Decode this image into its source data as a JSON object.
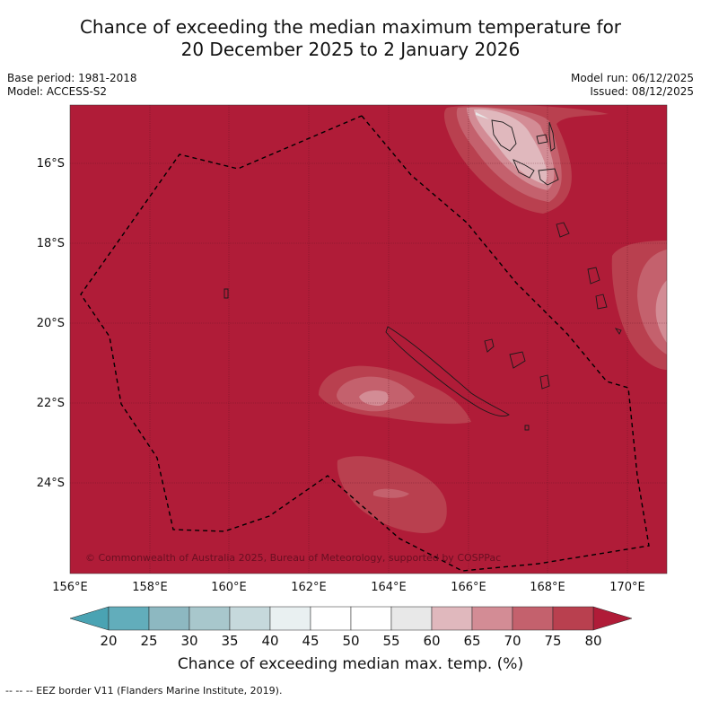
{
  "title": {
    "line1": "Chance of exceeding the median maximum temperature for",
    "line2": "20 December 2025 to 2 January 2026"
  },
  "meta": {
    "base_period": "Base period: 1981-2018",
    "model": "Model: ACCESS-S2",
    "model_run": "Model run: 06/12/2025",
    "issued": "Issued: 08/12/2025"
  },
  "map": {
    "lat_labels": [
      "16°S",
      "18°S",
      "20°S",
      "22°S",
      "24°S"
    ],
    "lon_labels": [
      "156°E",
      "158°E",
      "160°E",
      "162°E",
      "164°E",
      "166°E",
      "168°E",
      "170°E"
    ],
    "copyright": "© Commonwealth of Australia 2025, Bureau of Meteorology, supported by COSPPac"
  },
  "colorbar": {
    "ticks": [
      "20",
      "25",
      "30",
      "35",
      "40",
      "45",
      "50",
      "55",
      "60",
      "65",
      "70",
      "75",
      "80"
    ],
    "label": "Chance of exceeding median max. temp. (%)",
    "colors": [
      "#62adbb",
      "#8db8c1",
      "#a8c7cc",
      "#c6d9dc",
      "#e9f0f1",
      "#ffffff",
      "#ffffff",
      "#e8e8e8",
      "#e0b8bd",
      "#d38c95",
      "#c4616d",
      "#b9404f"
    ],
    "low_color": "#4aa3b3",
    "high_color": "#b01c38"
  },
  "footnote": "--  --  -- EEZ border V11 (Flanders Marine Institute, 2019)."
}
